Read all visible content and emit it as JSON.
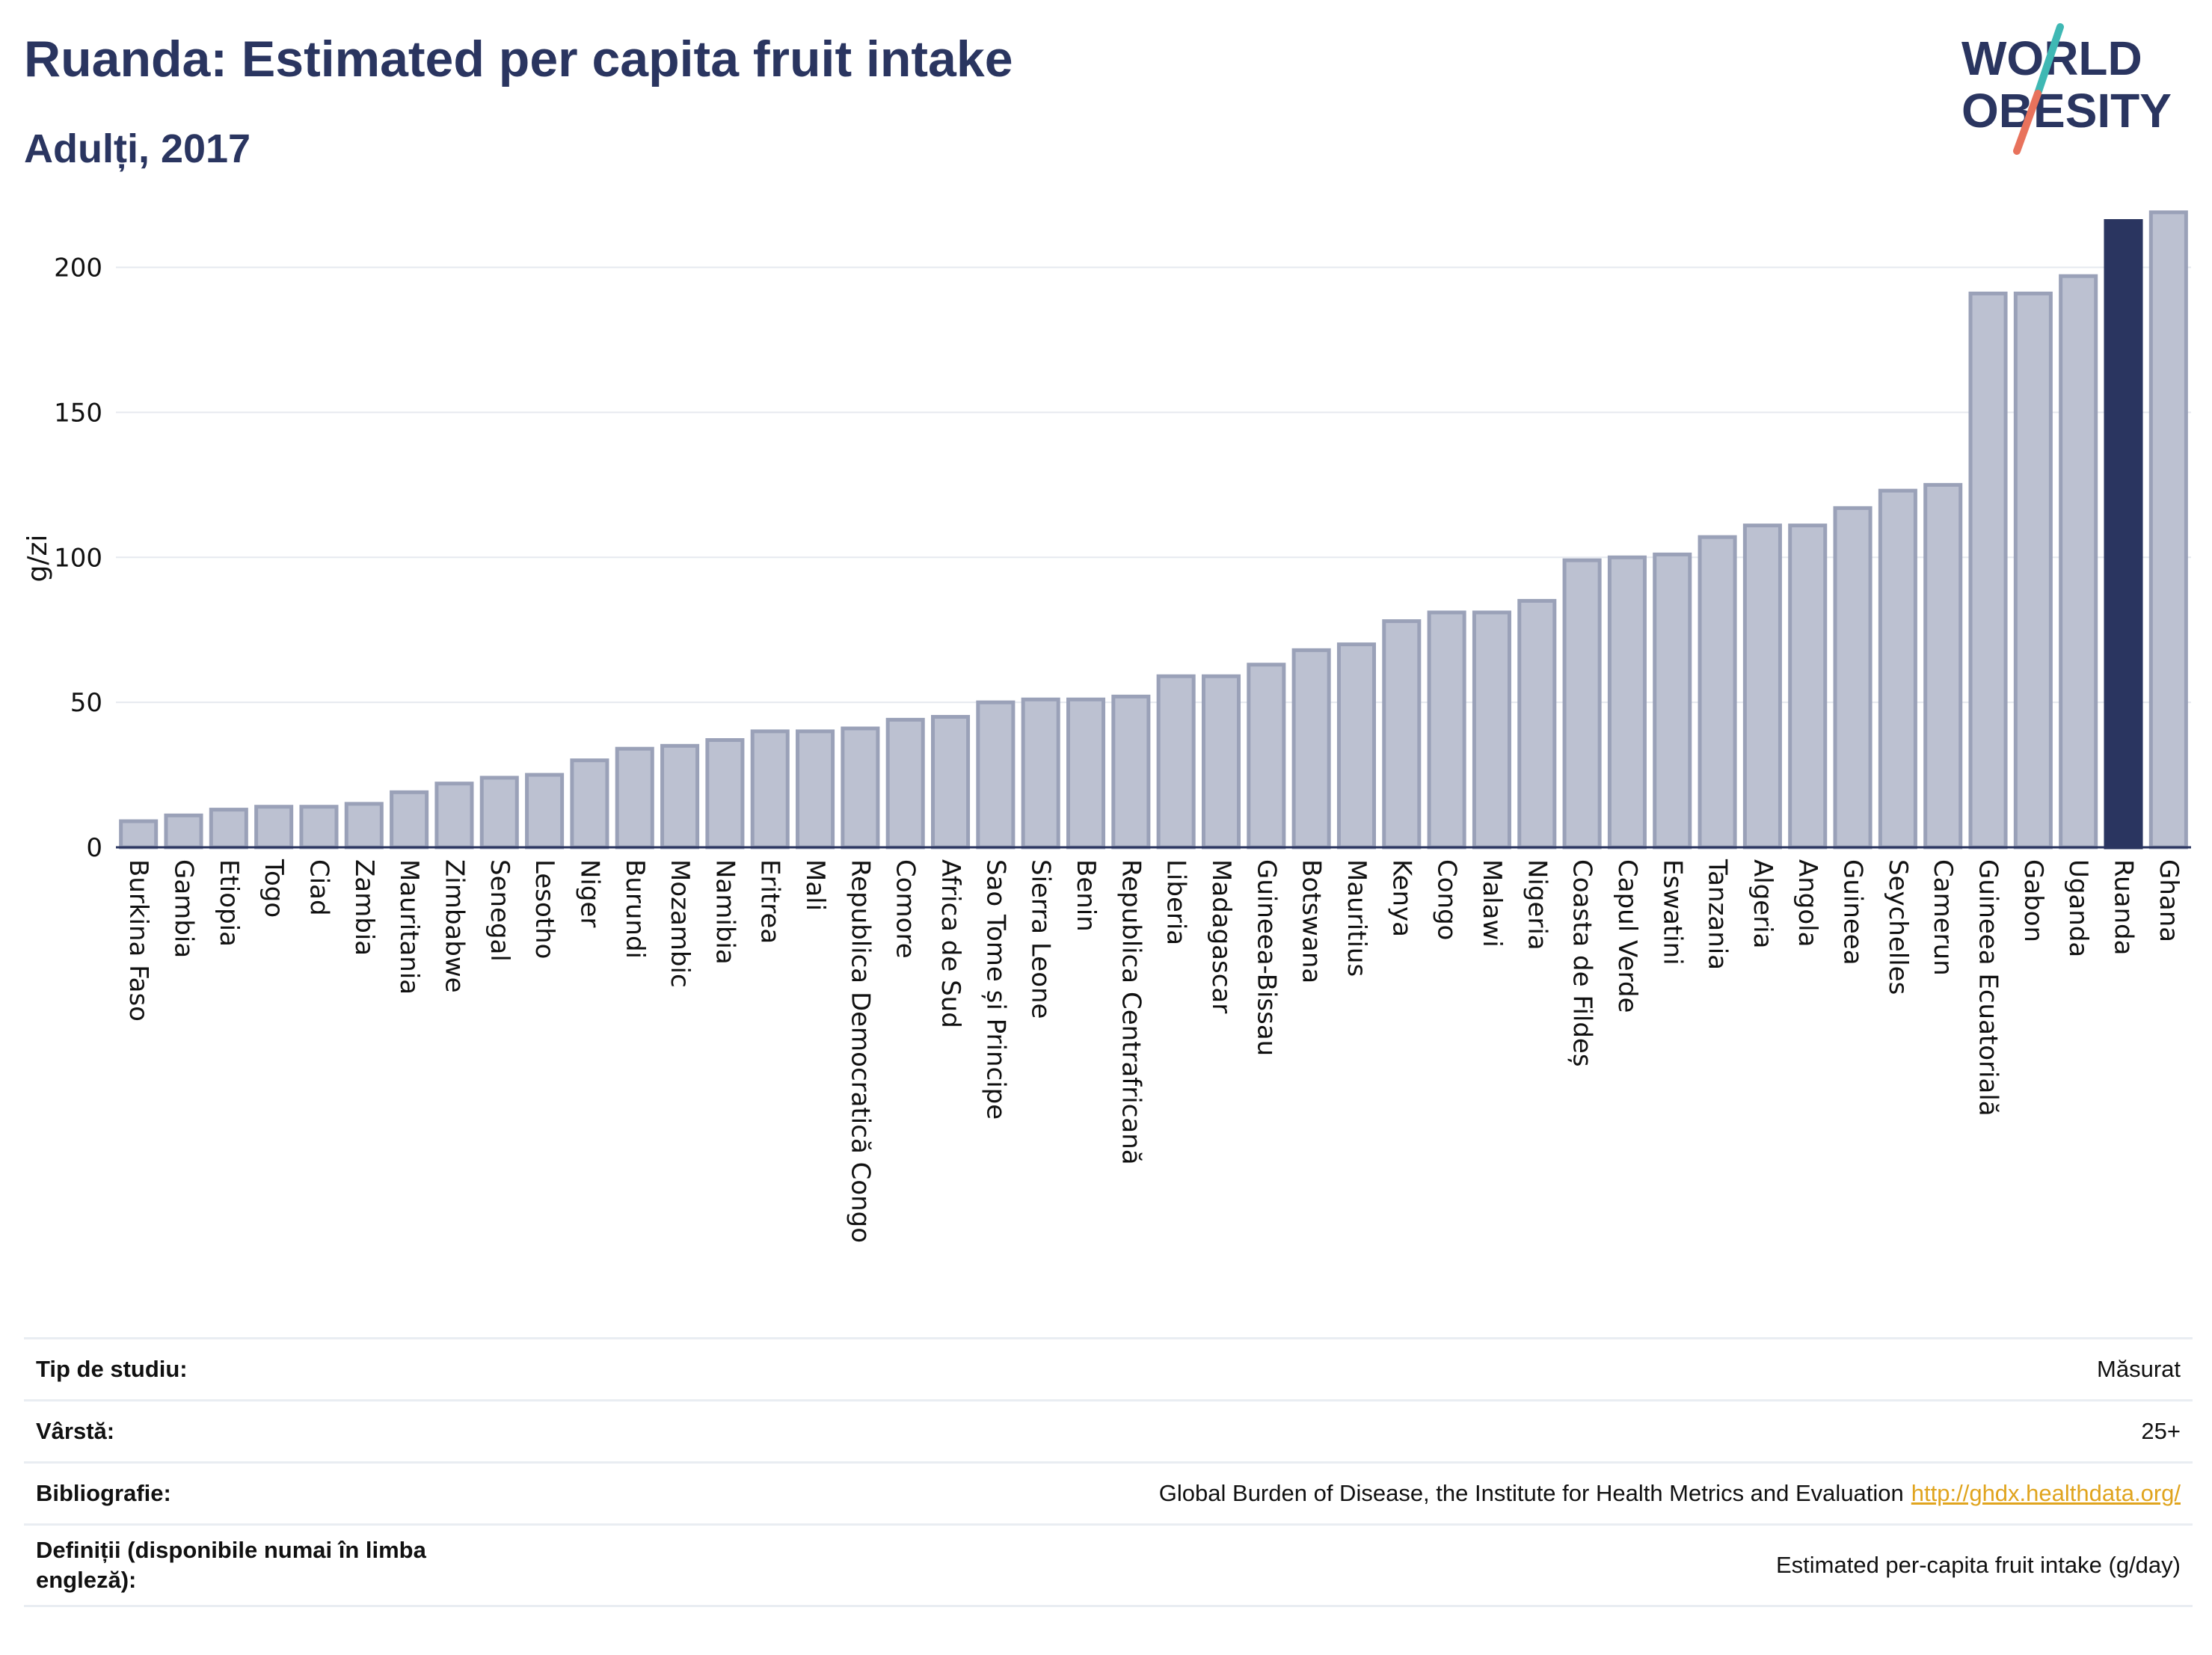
{
  "header": {
    "title": "Ruanda: Estimated per capita fruit intake",
    "subtitle": "Adulți, 2017"
  },
  "logo": {
    "line1": "WORLD",
    "line2": "OBESITY"
  },
  "colors": {
    "bar_fill": "#bcc1d1",
    "bar_stroke": "#9aa1b8",
    "highlight": "#2a3560",
    "title": "#2a3560",
    "logo_teal": "#3fb8b4",
    "logo_coral": "#e8725c",
    "grid": "#e6e9ef",
    "link": "#e0a41e"
  },
  "chart_data": {
    "type": "bar",
    "ylabel": "g/zi",
    "ylim": [
      0,
      220
    ],
    "yticks": [
      0,
      50,
      100,
      150,
      200
    ],
    "grid": true,
    "highlight_category": "Ruanda",
    "categories": [
      "Burkina Faso",
      "Gambia",
      "Etiopia",
      "Togo",
      "Ciad",
      "Zambia",
      "Mauritania",
      "Zimbabwe",
      "Senegal",
      "Lesotho",
      "Niger",
      "Burundi",
      "Mozambic",
      "Namibia",
      "Eritrea",
      "Mali",
      "Republica Democratică Congo",
      "Comore",
      "Africa de Sud",
      "Sao Tome și Principe",
      "Sierra Leone",
      "Benin",
      "Republica Centrafricană",
      "Liberia",
      "Madagascar",
      "Guineea-Bissau",
      "Botswana",
      "Mauritius",
      "Kenya",
      "Congo",
      "Malawi",
      "Nigeria",
      "Coasta de Fildeș",
      "Capul Verde",
      "Eswatini",
      "Tanzania",
      "Algeria",
      "Angola",
      "Guineea",
      "Seychelles",
      "Camerun",
      "Guineea Ecuatorială",
      "Gabon",
      "Uganda",
      "Ruanda",
      "Ghana"
    ],
    "values": [
      9,
      11,
      13,
      14,
      14,
      15,
      19,
      22,
      24,
      25,
      30,
      34,
      35,
      37,
      40,
      40,
      41,
      44,
      45,
      50,
      51,
      51,
      52,
      59,
      59,
      63,
      68,
      70,
      78,
      81,
      81,
      85,
      99,
      100,
      101,
      107,
      111,
      111,
      117,
      123,
      125,
      191,
      191,
      197,
      216,
      219
    ]
  },
  "info": {
    "rows": [
      {
        "label": "Tip de studiu:",
        "value": "Măsurat"
      },
      {
        "label": "Vârstă:",
        "value": "25+"
      },
      {
        "label": "Bibliografie:",
        "value": "Global Burden of Disease, the Institute for Health Metrics and Evaluation",
        "link": "http://ghdx.healthdata.org/"
      },
      {
        "label": "Definiții (disponibile numai în limba engleză):",
        "value": "Estimated per-capita fruit intake (g/day)"
      }
    ]
  }
}
